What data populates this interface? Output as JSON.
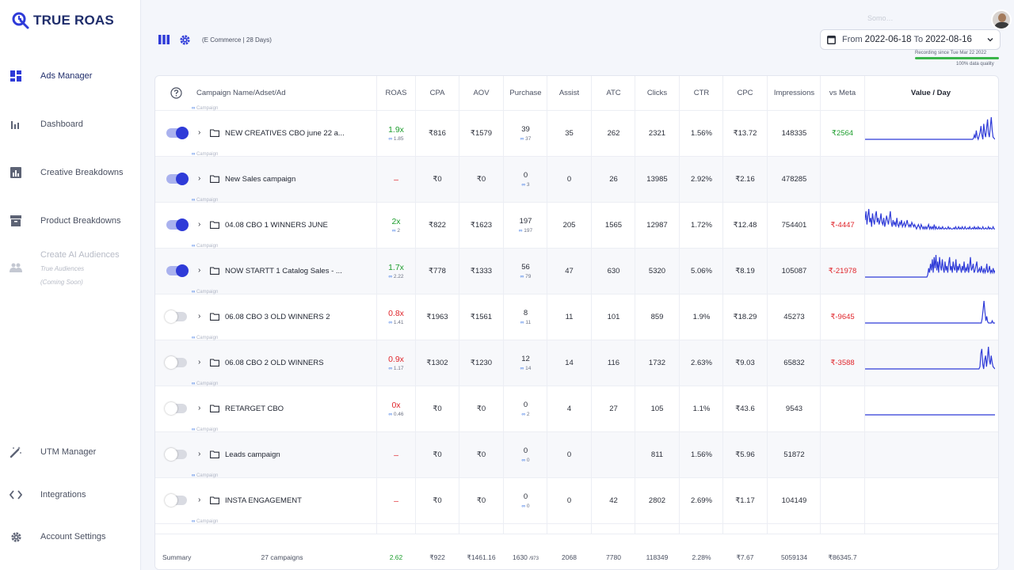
{
  "app": {
    "logo_text": "TRUE ROAS"
  },
  "sidebar": {
    "items": [
      {
        "label": "Ads Manager",
        "icon": "dashboard-grid-icon",
        "active": true
      },
      {
        "label": "Dashboard",
        "icon": "bar-chart-icon"
      },
      {
        "label": "Creative Breakdowns",
        "icon": "chart-box-icon"
      },
      {
        "label": "Product Breakdowns",
        "icon": "archive-box-icon"
      },
      {
        "label": "Create AI Audiences",
        "icon": "people-icon",
        "disabled": true,
        "sub1": "True Audiences",
        "sub2": "(Coming Soon)"
      },
      {
        "label": "UTM Manager",
        "icon": "magic-wand-icon"
      },
      {
        "label": "Integrations",
        "icon": "code-brackets-icon"
      },
      {
        "label": "Account Settings",
        "icon": "gear-icon"
      }
    ]
  },
  "toolbar": {
    "context": "(E Commerce | 28 Days)"
  },
  "header": {
    "faded_text": "Somo…",
    "date_from_label": "From",
    "date_from": "2022-06-18",
    "date_to_label": "To",
    "date_to": "2022-08-16",
    "recording": "Recording since Tue Mar 22 2022",
    "quality": "100% data quality"
  },
  "table": {
    "columns": [
      "Campaign Name/Adset/Ad",
      "ROAS",
      "CPA",
      "AOV",
      "Purchase",
      "Assist",
      "ATC",
      "Clicks",
      "CTR",
      "CPC",
      "Impressions",
      "vs Meta",
      "Value / Day"
    ],
    "tag_label": "Campaign",
    "rows": [
      {
        "on": true,
        "name": "NEW CREATIVES CBO june 22 a...",
        "roas": "1.9x",
        "roas_color": "green",
        "roas_sub": "1.85",
        "cpa": "₹816",
        "aov": "₹1579",
        "purchase": "39",
        "purchase_sub": "37",
        "assist": "35",
        "atc": "262",
        "clicks": "2321",
        "ctr": "1.56%",
        "cpc": "₹13.72",
        "impressions": "148335",
        "vs_meta": "₹2564",
        "vs_meta_color": "green",
        "spark": [
          0,
          0,
          0,
          0,
          0,
          0,
          0,
          0,
          0,
          0,
          0,
          0,
          0,
          0,
          0,
          0,
          0,
          0,
          0,
          0,
          0,
          0,
          0,
          0,
          0,
          0,
          0,
          0,
          0,
          0,
          0,
          0,
          0,
          0,
          0,
          0,
          0,
          0,
          0,
          0,
          0,
          0,
          0,
          0,
          0,
          0,
          0,
          0,
          0,
          0,
          0,
          0,
          0,
          0,
          0,
          0,
          0,
          0,
          0,
          0,
          0,
          0,
          0,
          0,
          0,
          0,
          0,
          0,
          0,
          0,
          0,
          0,
          0,
          0,
          0,
          0,
          0,
          0,
          0,
          0,
          0,
          0,
          0,
          0,
          0,
          0,
          0,
          0,
          0,
          0,
          0,
          0,
          0,
          0,
          0,
          0,
          0,
          0,
          0,
          0,
          0,
          0,
          0,
          0,
          0,
          0,
          0,
          0,
          0,
          0,
          0,
          0,
          0,
          0,
          0,
          0,
          0.05,
          0.2,
          0.05,
          0.4,
          0.1,
          0.0,
          0.15,
          0.3,
          0.6,
          0.2,
          0.0,
          0.7,
          0.3,
          0.1,
          0.5,
          0.9,
          0.3,
          0.1,
          0.55,
          1.0,
          0.4,
          0.1,
          0.05,
          0.0
        ]
      },
      {
        "on": true,
        "name": "New Sales campaign",
        "roas": "–",
        "roas_color": "red",
        "roas_sub": "",
        "cpa": "₹0",
        "aov": "₹0",
        "purchase": "0",
        "purchase_sub": "3",
        "assist": "0",
        "atc": "26",
        "clicks": "13985",
        "ctr": "2.92%",
        "cpc": "₹2.16",
        "impressions": "478285",
        "vs_meta": "",
        "vs_meta_color": "",
        "spark": []
      },
      {
        "on": true,
        "name": "04.08 CBO 1 WINNERS JUNE",
        "roas": "2x",
        "roas_color": "green",
        "roas_sub": "2",
        "cpa": "₹822",
        "aov": "₹1623",
        "purchase": "197",
        "purchase_sub": "197",
        "assist": "205",
        "atc": "1565",
        "clicks": "12987",
        "ctr": "1.72%",
        "cpc": "₹12.48",
        "impressions": "754401",
        "vs_meta": "₹-4447",
        "vs_meta_color": "red",
        "spark": [
          0.5,
          0.9,
          0.3,
          0.7,
          1.0,
          0.4,
          0.6,
          0.2,
          0.8,
          0.5,
          0.3,
          0.7,
          0.9,
          0.4,
          0.6,
          0.3,
          0.5,
          0.8,
          0.4,
          0.3,
          0.6,
          0.2,
          0.4,
          0.7,
          0.5,
          0.3,
          0.6,
          0.9,
          0.4,
          0.2,
          0.5,
          0.3,
          0.4,
          0.2,
          0.6,
          0.3,
          0.2,
          0.4,
          0.3,
          0.5,
          0.2,
          0.3,
          0.4,
          0.2,
          0.3,
          0.5,
          0.3,
          0.2,
          0.3,
          0.2,
          0.4,
          0.3,
          0.2,
          0.3,
          0.2,
          0.1,
          0.2,
          0.3,
          0.2,
          0.1,
          0.3,
          0.2,
          0.1,
          0.2,
          0.1,
          0.2,
          0.1,
          0.2,
          0.3,
          0.1,
          0.2,
          0.1,
          0.2,
          0.1,
          0.3,
          0.1,
          0.2,
          0.1,
          0.1,
          0.2,
          0.1,
          0.15,
          0.1,
          0.2,
          0.1,
          0.1,
          0.15,
          0.1,
          0.1,
          0.2,
          0.1,
          0.15,
          0.1,
          0.1,
          0.1,
          0.15,
          0.1,
          0.2,
          0.1,
          0.1,
          0.2,
          0.1,
          0.15,
          0.1,
          0.2,
          0.1,
          0.1,
          0.2,
          0.1,
          0.1,
          0.15,
          0.1,
          0.2,
          0.1,
          0.1,
          0.15,
          0.1,
          0.2,
          0.1,
          0.15,
          0.1,
          0.2,
          0.1,
          0.15,
          0.1,
          0.1,
          0.2,
          0.1,
          0.1,
          0.15,
          0.1,
          0.1,
          0.2,
          0.1,
          0.15,
          0.1,
          0.1,
          0.2,
          0.1,
          0.1
        ]
      },
      {
        "on": true,
        "name": "NOW STARTT 1 Catalog Sales - ...",
        "roas": "1.7x",
        "roas_color": "green",
        "roas_sub": "2.22",
        "cpa": "₹778",
        "aov": "₹1333",
        "purchase": "56",
        "purchase_sub": "79",
        "assist": "47",
        "atc": "630",
        "clicks": "5320",
        "ctr": "5.06%",
        "cpc": "₹8.19",
        "impressions": "105087",
        "vs_meta": "₹-21978",
        "vs_meta_color": "red",
        "spark": [
          0,
          0,
          0,
          0,
          0,
          0,
          0,
          0,
          0,
          0,
          0,
          0,
          0,
          0,
          0,
          0,
          0,
          0,
          0,
          0,
          0,
          0,
          0,
          0,
          0,
          0,
          0,
          0,
          0,
          0,
          0,
          0,
          0,
          0,
          0,
          0,
          0,
          0,
          0,
          0,
          0,
          0,
          0,
          0,
          0,
          0,
          0,
          0,
          0,
          0,
          0,
          0,
          0,
          0,
          0,
          0,
          0,
          0,
          0,
          0,
          0,
          0,
          0,
          0,
          0,
          0,
          0,
          0,
          0,
          0.1,
          0.4,
          0.2,
          0.6,
          0.3,
          0.8,
          0.2,
          0.9,
          0.4,
          1.0,
          0.3,
          0.7,
          0.2,
          0.9,
          0.5,
          0.3,
          0.8,
          0.4,
          0.2,
          0.7,
          0.3,
          0.5,
          0.2,
          0.6,
          0.9,
          0.3,
          0.5,
          0.2,
          0.7,
          0.4,
          0.3,
          0.8,
          0.2,
          0.5,
          0.3,
          0.6,
          0.4,
          0.2,
          0.5,
          0.3,
          0.7,
          0.2,
          0.4,
          0.3,
          0.6,
          0.2,
          0.5,
          0.9,
          0.3,
          0.4,
          0.6,
          0.2,
          0.3,
          0.5,
          0.7,
          0.2,
          0.3,
          0.4,
          0.2,
          0.5,
          0.3,
          0.2,
          0.4,
          0.2,
          0.3,
          0.6,
          0.2,
          0.3,
          0.5,
          0.2,
          0.3,
          0.2,
          0.4,
          0.2,
          0.3
        ]
      },
      {
        "on": false,
        "name": "06.08 CBO 3 OLD WINNERS 2",
        "roas": "0.8x",
        "roas_color": "red",
        "roas_sub": "1.41",
        "cpa": "₹1963",
        "aov": "₹1561",
        "purchase": "8",
        "purchase_sub": "11",
        "assist": "11",
        "atc": "101",
        "clicks": "859",
        "ctr": "1.9%",
        "cpc": "₹18.29",
        "impressions": "45273",
        "vs_meta": "₹-9645",
        "vs_meta_color": "red",
        "spark": [
          0,
          0,
          0,
          0,
          0,
          0,
          0,
          0,
          0,
          0,
          0,
          0,
          0,
          0,
          0,
          0,
          0,
          0,
          0,
          0,
          0,
          0,
          0,
          0,
          0,
          0,
          0,
          0,
          0,
          0,
          0,
          0,
          0,
          0,
          0,
          0,
          0,
          0,
          0,
          0,
          0,
          0,
          0,
          0,
          0,
          0,
          0,
          0,
          0,
          0,
          0,
          0,
          0,
          0,
          0,
          0,
          0,
          0,
          0,
          0,
          0,
          0,
          0,
          0,
          0,
          0,
          0,
          0,
          0,
          0,
          0,
          0,
          0,
          0,
          0,
          0,
          0,
          0,
          0,
          0,
          0,
          0,
          0,
          0,
          0,
          0,
          0,
          0,
          0,
          0,
          0,
          0,
          0,
          0,
          0,
          0,
          0,
          0,
          0,
          0,
          0,
          0,
          0,
          0,
          0,
          0,
          0,
          0,
          0,
          0,
          0,
          0,
          0,
          0,
          0,
          0,
          0,
          0,
          0,
          0,
          0,
          0,
          0,
          0,
          0,
          0,
          0,
          0,
          0.2,
          0.6,
          1.0,
          0.5,
          0.1,
          0.3,
          0.05,
          0,
          0,
          0,
          0,
          0.1,
          0,
          0,
          0
        ]
      },
      {
        "on": false,
        "name": "06.08 CBO 2 OLD WINNERS",
        "roas": "0.9x",
        "roas_color": "red",
        "roas_sub": "1.17",
        "cpa": "₹1302",
        "aov": "₹1230",
        "purchase": "12",
        "purchase_sub": "14",
        "assist": "14",
        "atc": "116",
        "clicks": "1732",
        "ctr": "2.63%",
        "cpc": "₹9.03",
        "impressions": "65832",
        "vs_meta": "₹-3588",
        "vs_meta_color": "red",
        "spark": [
          0,
          0,
          0,
          0,
          0,
          0,
          0,
          0,
          0,
          0,
          0,
          0,
          0,
          0,
          0,
          0,
          0,
          0,
          0,
          0,
          0,
          0,
          0,
          0,
          0,
          0,
          0,
          0,
          0,
          0,
          0,
          0,
          0,
          0,
          0,
          0,
          0,
          0,
          0,
          0,
          0,
          0,
          0,
          0,
          0,
          0,
          0,
          0,
          0,
          0,
          0,
          0,
          0,
          0,
          0,
          0,
          0,
          0,
          0,
          0,
          0,
          0,
          0,
          0,
          0,
          0,
          0,
          0,
          0,
          0,
          0,
          0,
          0,
          0,
          0,
          0,
          0,
          0,
          0,
          0,
          0,
          0,
          0,
          0,
          0,
          0,
          0,
          0,
          0,
          0,
          0,
          0,
          0,
          0,
          0,
          0,
          0,
          0,
          0,
          0,
          0,
          0,
          0,
          0,
          0,
          0,
          0,
          0,
          0,
          0,
          0,
          0,
          0,
          0,
          0,
          0,
          0,
          0,
          0,
          0,
          0,
          0,
          0.1,
          0.7,
          0.9,
          0.2,
          0.0,
          0.4,
          0.6,
          0.1,
          0.5,
          1.0,
          0.4,
          0.2,
          0.6,
          0.3,
          0.1,
          0.05,
          0
        ]
      },
      {
        "on": false,
        "name": "RETARGET CBO",
        "roas": "0x",
        "roas_color": "red",
        "roas_sub": "0.46",
        "cpa": "₹0",
        "aov": "₹0",
        "purchase": "0",
        "purchase_sub": "2",
        "assist": "4",
        "atc": "27",
        "clicks": "105",
        "ctr": "1.1%",
        "cpc": "₹43.6",
        "impressions": "9543",
        "vs_meta": "",
        "vs_meta_color": "",
        "spark": [
          0,
          0,
          0,
          0,
          0,
          0,
          0,
          0,
          0,
          0,
          0,
          0,
          0,
          0,
          0,
          0,
          0,
          0,
          0,
          0,
          0,
          0,
          0,
          0,
          0,
          0,
          0,
          0,
          0,
          0,
          0,
          0,
          0,
          0,
          0,
          0,
          0,
          0,
          0,
          0,
          0,
          0,
          0,
          0,
          0,
          0,
          0,
          0,
          0,
          0,
          0,
          0,
          0,
          0,
          0,
          0,
          0,
          0,
          0,
          0,
          0,
          0,
          0,
          0,
          0,
          0,
          0,
          0,
          0,
          0,
          0,
          0,
          0,
          0,
          0,
          0,
          0,
          0,
          0,
          0,
          0,
          0,
          0,
          0,
          0,
          0,
          0,
          0,
          0,
          0,
          0,
          0,
          0,
          0,
          0,
          0,
          0,
          0,
          0,
          0,
          0,
          0,
          0,
          0,
          0,
          0,
          0,
          0,
          0,
          0,
          0,
          0,
          0,
          0,
          0,
          0,
          0,
          0,
          0,
          0,
          0,
          0,
          0,
          0,
          0,
          0,
          0,
          0,
          0,
          0,
          0,
          0,
          0,
          0,
          0,
          0,
          0,
          0,
          0,
          0,
          0,
          0
        ]
      },
      {
        "on": false,
        "name": "Leads campaign",
        "roas": "–",
        "roas_color": "red",
        "roas_sub": "",
        "cpa": "₹0",
        "aov": "₹0",
        "purchase": "0",
        "purchase_sub": "0",
        "assist": "0",
        "atc": "",
        "clicks": "811",
        "ctr": "1.56%",
        "cpc": "₹5.96",
        "impressions": "51872",
        "vs_meta": "",
        "vs_meta_color": "",
        "spark": []
      },
      {
        "on": false,
        "name": "INSTA ENGAGEMENT",
        "roas": "–",
        "roas_color": "red",
        "roas_sub": "",
        "cpa": "₹0",
        "aov": "₹0",
        "purchase": "0",
        "purchase_sub": "0",
        "assist": "0",
        "atc": "42",
        "clicks": "2802",
        "ctr": "2.69%",
        "cpc": "₹1.17",
        "impressions": "104149",
        "vs_meta": "",
        "vs_meta_color": "",
        "spark": []
      }
    ],
    "summary": {
      "label": "Summary",
      "count": "27 campaigns",
      "roas": "2.62",
      "cpa": "₹922",
      "aov": "₹1461.16",
      "purchase": "1630",
      "purchase_sub": "/973",
      "assist": "2068",
      "atc": "7780",
      "clicks": "118349",
      "ctr": "2.28%",
      "cpc": "₹7.67",
      "impressions": "5059134",
      "vs_meta": "₹86345.7"
    }
  },
  "colors": {
    "brand": "#2f3bd8",
    "green": "#1e9e2e",
    "red": "#e0262c",
    "meta_blue": "#2f6ee3"
  }
}
